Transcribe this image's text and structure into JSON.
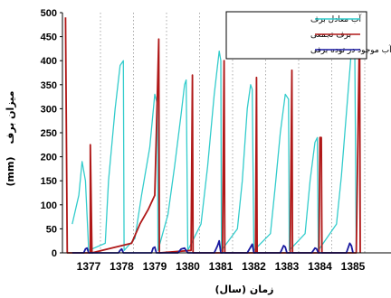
{
  "chart_data": {
    "type": "line",
    "xlabel": "زمان (سال)",
    "ylabel": "میزان برف",
    "yunit": "(mm)",
    "ylim": [
      0,
      500
    ],
    "yticks": [
      0,
      50,
      100,
      150,
      200,
      250,
      300,
      350,
      400,
      450,
      500
    ],
    "years": [
      "1377",
      "1378",
      "1379",
      "1380",
      "1381",
      "1382",
      "1383",
      "1384",
      "1385"
    ],
    "grid": "vertical dotted lines",
    "legend_position": "top-right",
    "series": [
      {
        "name": "آب معادل برف",
        "color": "#33cccc",
        "points": [
          [
            1376.5,
            60
          ],
          [
            1376.7,
            120
          ],
          [
            1376.8,
            190
          ],
          [
            1376.9,
            150
          ],
          [
            1377.0,
            5
          ],
          [
            1377.5,
            20
          ],
          [
            1377.6,
            150
          ],
          [
            1377.8,
            300
          ],
          [
            1377.95,
            390
          ],
          [
            1378.05,
            400
          ],
          [
            1378.07,
            5
          ],
          [
            1378.4,
            30
          ],
          [
            1378.6,
            120
          ],
          [
            1378.85,
            220
          ],
          [
            1379.0,
            330
          ],
          [
            1379.08,
            310
          ],
          [
            1379.1,
            5
          ],
          [
            1379.4,
            80
          ],
          [
            1379.6,
            180
          ],
          [
            1379.8,
            290
          ],
          [
            1379.9,
            350
          ],
          [
            1379.95,
            360
          ],
          [
            1380.0,
            5
          ],
          [
            1380.4,
            60
          ],
          [
            1380.6,
            180
          ],
          [
            1380.8,
            330
          ],
          [
            1380.95,
            420
          ],
          [
            1381.0,
            400
          ],
          [
            1381.02,
            5
          ],
          [
            1381.5,
            50
          ],
          [
            1381.65,
            150
          ],
          [
            1381.8,
            300
          ],
          [
            1381.9,
            350
          ],
          [
            1381.95,
            340
          ],
          [
            1382.0,
            5
          ],
          [
            1382.5,
            40
          ],
          [
            1382.65,
            140
          ],
          [
            1382.8,
            250
          ],
          [
            1382.95,
            330
          ],
          [
            1383.05,
            320
          ],
          [
            1383.07,
            5
          ],
          [
            1383.55,
            40
          ],
          [
            1383.7,
            150
          ],
          [
            1383.85,
            230
          ],
          [
            1383.92,
            240
          ],
          [
            1383.95,
            5
          ],
          [
            1384.5,
            60
          ],
          [
            1384.65,
            160
          ],
          [
            1384.8,
            290
          ],
          [
            1384.95,
            420
          ],
          [
            1385.05,
            470
          ],
          [
            1385.1,
            5
          ]
        ]
      },
      {
        "name": "برف تجمعی",
        "color": "#b01818",
        "points": [
          [
            1376.3,
            490
          ],
          [
            1376.35,
            0
          ],
          [
            1377.05,
            0
          ],
          [
            1377.05,
            225
          ],
          [
            1377.1,
            0
          ],
          [
            1378.3,
            20
          ],
          [
            1378.55,
            60
          ],
          [
            1378.8,
            90
          ],
          [
            1379.0,
            120
          ],
          [
            1379.12,
            445
          ],
          [
            1379.14,
            0
          ],
          [
            1380.1,
            5
          ],
          [
            1380.14,
            370
          ],
          [
            1380.16,
            0
          ],
          [
            1381.05,
            0
          ],
          [
            1381.1,
            400
          ],
          [
            1381.12,
            0
          ],
          [
            1382.05,
            0
          ],
          [
            1382.08,
            365
          ],
          [
            1382.1,
            0
          ],
          [
            1383.1,
            0
          ],
          [
            1383.15,
            380
          ],
          [
            1383.17,
            0
          ],
          [
            1383.97,
            0
          ],
          [
            1384.0,
            240
          ],
          [
            1384.04,
            240
          ],
          [
            1384.06,
            0
          ],
          [
            1385.1,
            0
          ],
          [
            1385.2,
            475
          ],
          [
            1385.22,
            0
          ]
        ]
      },
      {
        "name": "آب موجود در توده برفی",
        "color": "#1a1aa0",
        "points": [
          [
            1376.5,
            0
          ],
          [
            1376.85,
            0
          ],
          [
            1376.9,
            8
          ],
          [
            1376.95,
            10
          ],
          [
            1377.0,
            0
          ],
          [
            1377.9,
            0
          ],
          [
            1377.95,
            5
          ],
          [
            1378.0,
            8
          ],
          [
            1378.05,
            0
          ],
          [
            1378.9,
            0
          ],
          [
            1378.95,
            10
          ],
          [
            1379.0,
            12
          ],
          [
            1379.05,
            0
          ],
          [
            1379.7,
            0
          ],
          [
            1379.8,
            8
          ],
          [
            1379.9,
            10
          ],
          [
            1380.0,
            0
          ],
          [
            1380.8,
            0
          ],
          [
            1380.9,
            15
          ],
          [
            1380.95,
            25
          ],
          [
            1381.0,
            0
          ],
          [
            1381.8,
            0
          ],
          [
            1381.9,
            12
          ],
          [
            1381.95,
            18
          ],
          [
            1382.0,
            0
          ],
          [
            1382.8,
            0
          ],
          [
            1382.9,
            15
          ],
          [
            1382.95,
            12
          ],
          [
            1383.0,
            0
          ],
          [
            1383.75,
            0
          ],
          [
            1383.85,
            10
          ],
          [
            1383.9,
            8
          ],
          [
            1383.95,
            0
          ],
          [
            1384.8,
            0
          ],
          [
            1384.9,
            20
          ],
          [
            1384.95,
            15
          ],
          [
            1385.0,
            0
          ]
        ]
      }
    ]
  }
}
